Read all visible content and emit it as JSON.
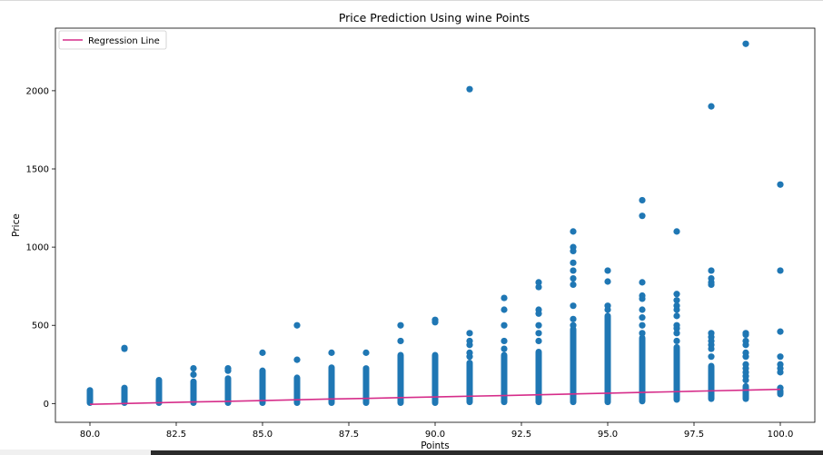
{
  "chart_data": {
    "type": "scatter",
    "title": "Price Prediction Using wine Points",
    "xlabel": "Points",
    "ylabel": "Price",
    "xlim": [
      79.0,
      101.0
    ],
    "ylim": [
      -120,
      2400
    ],
    "xticks": [
      80.0,
      82.5,
      85.0,
      87.5,
      90.0,
      92.5,
      95.0,
      97.5,
      100.0
    ],
    "xtick_labels": [
      "80.0",
      "82.5",
      "85.0",
      "87.5",
      "90.0",
      "92.5",
      "95.0",
      "97.5",
      "100.0"
    ],
    "yticks": [
      0,
      500,
      1000,
      1500,
      2000
    ],
    "ytick_labels": [
      "0",
      "500",
      "1000",
      "1500",
      "2000"
    ],
    "grid": false,
    "legend": {
      "position": "top-left",
      "entries": [
        "Regression Line"
      ]
    },
    "scatter_color": "#1f77b4",
    "regression_color": "#d62d8a",
    "series": [
      {
        "kind": "scatter",
        "dense_ranges": [
          {
            "x": 80,
            "min": 5,
            "max": 85
          },
          {
            "x": 81,
            "min": 5,
            "max": 100
          },
          {
            "x": 82,
            "min": 5,
            "max": 150
          },
          {
            "x": 83,
            "min": 5,
            "max": 140
          },
          {
            "x": 84,
            "min": 5,
            "max": 160
          },
          {
            "x": 85,
            "min": 5,
            "max": 210
          },
          {
            "x": 86,
            "min": 5,
            "max": 165
          },
          {
            "x": 87,
            "min": 5,
            "max": 230
          },
          {
            "x": 88,
            "min": 5,
            "max": 225
          },
          {
            "x": 89,
            "min": 5,
            "max": 310
          },
          {
            "x": 90,
            "min": 5,
            "max": 310
          },
          {
            "x": 91,
            "min": 10,
            "max": 260
          },
          {
            "x": 92,
            "min": 10,
            "max": 310
          },
          {
            "x": 93,
            "min": 10,
            "max": 330
          },
          {
            "x": 94,
            "min": 10,
            "max": 475
          },
          {
            "x": 95,
            "min": 10,
            "max": 560
          },
          {
            "x": 96,
            "min": 15,
            "max": 420
          },
          {
            "x": 97,
            "min": 25,
            "max": 360
          },
          {
            "x": 98,
            "min": 30,
            "max": 240
          },
          {
            "x": 99,
            "min": 30,
            "max": 110
          },
          {
            "x": 100,
            "min": 60,
            "max": 80
          }
        ],
        "outliers": [
          {
            "x": 81,
            "y": 355
          },
          {
            "x": 81,
            "y": 350
          },
          {
            "x": 83,
            "y": 225
          },
          {
            "x": 83,
            "y": 185
          },
          {
            "x": 84,
            "y": 225
          },
          {
            "x": 84,
            "y": 210
          },
          {
            "x": 85,
            "y": 325
          },
          {
            "x": 86,
            "y": 500
          },
          {
            "x": 86,
            "y": 280
          },
          {
            "x": 87,
            "y": 325
          },
          {
            "x": 88,
            "y": 325
          },
          {
            "x": 89,
            "y": 500
          },
          {
            "x": 89,
            "y": 400
          },
          {
            "x": 90,
            "y": 535
          },
          {
            "x": 90,
            "y": 520
          },
          {
            "x": 91,
            "y": 2010
          },
          {
            "x": 91,
            "y": 450
          },
          {
            "x": 91,
            "y": 400
          },
          {
            "x": 91,
            "y": 375
          },
          {
            "x": 91,
            "y": 325
          },
          {
            "x": 91,
            "y": 300
          },
          {
            "x": 92,
            "y": 675
          },
          {
            "x": 92,
            "y": 600
          },
          {
            "x": 92,
            "y": 500
          },
          {
            "x": 92,
            "y": 400
          },
          {
            "x": 92,
            "y": 350
          },
          {
            "x": 93,
            "y": 775
          },
          {
            "x": 93,
            "y": 745
          },
          {
            "x": 93,
            "y": 600
          },
          {
            "x": 93,
            "y": 575
          },
          {
            "x": 93,
            "y": 500
          },
          {
            "x": 93,
            "y": 450
          },
          {
            "x": 93,
            "y": 400
          },
          {
            "x": 94,
            "y": 1100
          },
          {
            "x": 94,
            "y": 1000
          },
          {
            "x": 94,
            "y": 975
          },
          {
            "x": 94,
            "y": 900
          },
          {
            "x": 94,
            "y": 850
          },
          {
            "x": 94,
            "y": 800
          },
          {
            "x": 94,
            "y": 760
          },
          {
            "x": 94,
            "y": 625
          },
          {
            "x": 94,
            "y": 540
          },
          {
            "x": 94,
            "y": 500
          },
          {
            "x": 95,
            "y": 850
          },
          {
            "x": 95,
            "y": 780
          },
          {
            "x": 95,
            "y": 625
          },
          {
            "x": 95,
            "y": 600
          },
          {
            "x": 96,
            "y": 1300
          },
          {
            "x": 96,
            "y": 1200
          },
          {
            "x": 96,
            "y": 775
          },
          {
            "x": 96,
            "y": 690
          },
          {
            "x": 96,
            "y": 670
          },
          {
            "x": 96,
            "y": 600
          },
          {
            "x": 96,
            "y": 550
          },
          {
            "x": 96,
            "y": 500
          },
          {
            "x": 96,
            "y": 450
          },
          {
            "x": 97,
            "y": 1100
          },
          {
            "x": 97,
            "y": 700
          },
          {
            "x": 97,
            "y": 660
          },
          {
            "x": 97,
            "y": 625
          },
          {
            "x": 97,
            "y": 600
          },
          {
            "x": 97,
            "y": 560
          },
          {
            "x": 97,
            "y": 500
          },
          {
            "x": 97,
            "y": 480
          },
          {
            "x": 97,
            "y": 450
          },
          {
            "x": 97,
            "y": 400
          },
          {
            "x": 98,
            "y": 1900
          },
          {
            "x": 98,
            "y": 850
          },
          {
            "x": 98,
            "y": 800
          },
          {
            "x": 98,
            "y": 775
          },
          {
            "x": 98,
            "y": 760
          },
          {
            "x": 98,
            "y": 450
          },
          {
            "x": 98,
            "y": 425
          },
          {
            "x": 98,
            "y": 400
          },
          {
            "x": 98,
            "y": 375
          },
          {
            "x": 98,
            "y": 350
          },
          {
            "x": 98,
            "y": 300
          },
          {
            "x": 99,
            "y": 2300
          },
          {
            "x": 99,
            "y": 450
          },
          {
            "x": 99,
            "y": 440
          },
          {
            "x": 99,
            "y": 400
          },
          {
            "x": 99,
            "y": 375
          },
          {
            "x": 99,
            "y": 325
          },
          {
            "x": 99,
            "y": 300
          },
          {
            "x": 99,
            "y": 250
          },
          {
            "x": 99,
            "y": 225
          },
          {
            "x": 99,
            "y": 200
          },
          {
            "x": 99,
            "y": 175
          },
          {
            "x": 99,
            "y": 150
          },
          {
            "x": 100,
            "y": 1400
          },
          {
            "x": 100,
            "y": 850
          },
          {
            "x": 100,
            "y": 460
          },
          {
            "x": 100,
            "y": 300
          },
          {
            "x": 100,
            "y": 250
          },
          {
            "x": 100,
            "y": 225
          },
          {
            "x": 100,
            "y": 200
          },
          {
            "x": 100,
            "y": 100
          }
        ]
      },
      {
        "kind": "line",
        "name": "Regression Line",
        "x": [
          80,
          81,
          82,
          83,
          84,
          85,
          86,
          87,
          88,
          89,
          90,
          91,
          92,
          93,
          94,
          95,
          96,
          97,
          98,
          99,
          100
        ],
        "y": [
          -5,
          0,
          5,
          10,
          14,
          19,
          24,
          29,
          33,
          38,
          42,
          47,
          51,
          56,
          61,
          66,
          71,
          76,
          81,
          86,
          91
        ]
      }
    ]
  }
}
